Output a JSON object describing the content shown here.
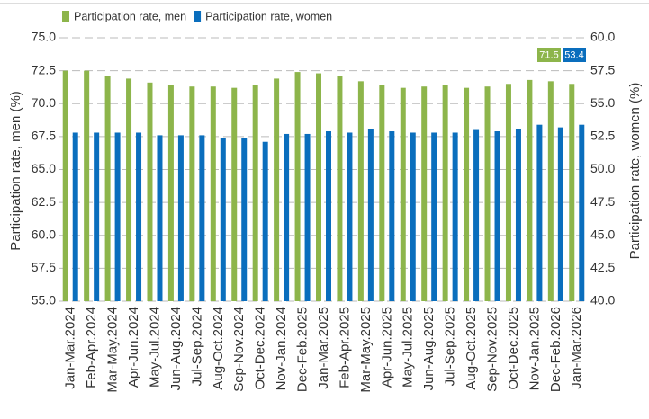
{
  "chart_data": {
    "type": "bar",
    "ylabel": "Participation rate, men (%)",
    "y2label": "Participation rate, women (%)",
    "categories": [
      "Jan-Mar.2024",
      "Feb-Apr.2024",
      "Mar-May.2024",
      "Apr-Jun.2024",
      "May-Jul.2024",
      "Jun-Aug.2024",
      "Jul-Sep.2024",
      "Aug-Oct.2024",
      "Sep-Nov.2024",
      "Oct-Dec.2024",
      "Nov-Jan.2024",
      "Dec-Feb.2025",
      "Jan-Mar.2025",
      "Feb-Apr.2025",
      "Mar-May.2025",
      "Apr-Jun.2025",
      "May-Jul.2025",
      "Jun-Aug.2025",
      "Jul-Sep.2025",
      "Aug-Oct.2025",
      "Sep-Nov.2025",
      "Oct-Dec.2025",
      "Nov-Jan.2025",
      "Dec-Feb.2026",
      "Jan-Mar.2026"
    ],
    "series": [
      {
        "name": "Participation rate, men",
        "color": "#8db54b",
        "axis": "y",
        "values": [
          72.5,
          72.5,
          72.1,
          71.9,
          71.6,
          71.4,
          71.3,
          71.3,
          71.2,
          71.4,
          71.9,
          72.4,
          72.3,
          72.1,
          71.7,
          71.4,
          71.2,
          71.3,
          71.4,
          71.2,
          71.3,
          71.5,
          71.8,
          71.7,
          71.5
        ]
      },
      {
        "name": "Participation rate, women",
        "color": "#0a6ebd",
        "axis": "y2",
        "values": [
          52.8,
          52.8,
          52.8,
          52.8,
          52.6,
          52.6,
          52.6,
          52.4,
          52.4,
          52.1,
          52.7,
          52.7,
          52.9,
          52.8,
          53.1,
          52.9,
          52.8,
          52.8,
          52.8,
          53.0,
          52.9,
          53.1,
          53.4,
          53.2,
          53.4
        ]
      }
    ],
    "ylim": [
      55,
      75
    ],
    "yticks": [
      {
        "value": 55,
        "label": "55.0"
      },
      {
        "value": 57.5,
        "label": "57.5"
      },
      {
        "value": 60,
        "label": "60.0"
      },
      {
        "value": 62.5,
        "label": "62.5"
      },
      {
        "value": 65,
        "label": "65.0"
      },
      {
        "value": 67.5,
        "label": "67.5"
      },
      {
        "value": 70,
        "label": "70.0"
      },
      {
        "value": 72.5,
        "label": "72.5"
      },
      {
        "value": 75,
        "label": "75.0"
      }
    ],
    "y2lim": [
      40,
      60
    ],
    "y2ticks": [
      {
        "value": 40,
        "label": "40.0"
      },
      {
        "value": 42.5,
        "label": "42.5"
      },
      {
        "value": 45,
        "label": "45.0"
      },
      {
        "value": 47.5,
        "label": "47.5"
      },
      {
        "value": 50,
        "label": "50.0"
      },
      {
        "value": 52.5,
        "label": "52.5"
      },
      {
        "value": 55,
        "label": "55.0"
      },
      {
        "value": 57.5,
        "label": "57.5"
      },
      {
        "value": 60,
        "label": "60.0"
      }
    ],
    "grid": true,
    "legend": "top-left"
  }
}
